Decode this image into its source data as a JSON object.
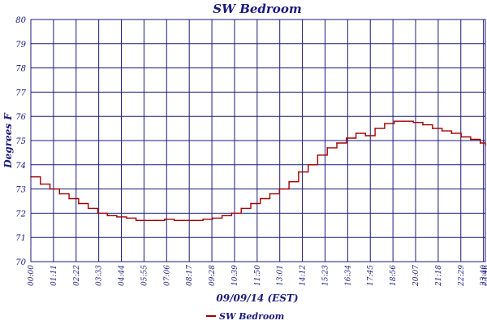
{
  "chart_data": {
    "type": "line",
    "title": "SW Bedroom",
    "xlabel": "09/09/14 (EST)",
    "ylabel": "Degrees F",
    "ylim": [
      70,
      80
    ],
    "yticks": [
      "70",
      "71",
      "72",
      "73",
      "74",
      "75",
      "76",
      "77",
      "78",
      "79",
      "80"
    ],
    "xticks": [
      "00:00",
      "01:11",
      "02:22",
      "03:33",
      "04:44",
      "05:55",
      "07:06",
      "08:17",
      "09:28",
      "10:39",
      "11:50",
      "13:01",
      "14:12",
      "15:23",
      "16:34",
      "17:45",
      "18:56",
      "20:07",
      "21:18",
      "22:29",
      "23:40",
      "23:46"
    ],
    "grid": true,
    "legend_position": "bottom-left",
    "series": [
      {
        "name": "SW Bedroom",
        "color": "#a00000",
        "x": [
          "00:00",
          "00:30",
          "01:00",
          "01:30",
          "02:00",
          "02:30",
          "03:00",
          "03:30",
          "04:00",
          "04:30",
          "05:00",
          "05:30",
          "06:00",
          "06:30",
          "07:00",
          "07:30",
          "08:00",
          "08:30",
          "09:00",
          "09:30",
          "10:00",
          "10:30",
          "11:00",
          "11:30",
          "12:00",
          "12:30",
          "13:00",
          "13:30",
          "14:00",
          "14:30",
          "15:00",
          "15:30",
          "16:00",
          "16:30",
          "17:00",
          "17:30",
          "18:00",
          "18:30",
          "19:00",
          "19:30",
          "20:00",
          "20:30",
          "21:00",
          "21:30",
          "22:00",
          "22:30",
          "23:00",
          "23:30",
          "23:46"
        ],
        "values": [
          73.5,
          73.2,
          73.0,
          72.8,
          72.6,
          72.4,
          72.2,
          72.0,
          71.9,
          71.85,
          71.8,
          71.7,
          71.7,
          71.7,
          71.75,
          71.7,
          71.7,
          71.7,
          71.75,
          71.8,
          71.9,
          72.0,
          72.2,
          72.4,
          72.6,
          72.8,
          73.0,
          73.3,
          73.7,
          74.0,
          74.4,
          74.7,
          74.9,
          75.1,
          75.3,
          75.2,
          75.5,
          75.7,
          75.8,
          75.8,
          75.75,
          75.65,
          75.5,
          75.4,
          75.3,
          75.15,
          75.05,
          74.9,
          74.8
        ]
      }
    ]
  }
}
